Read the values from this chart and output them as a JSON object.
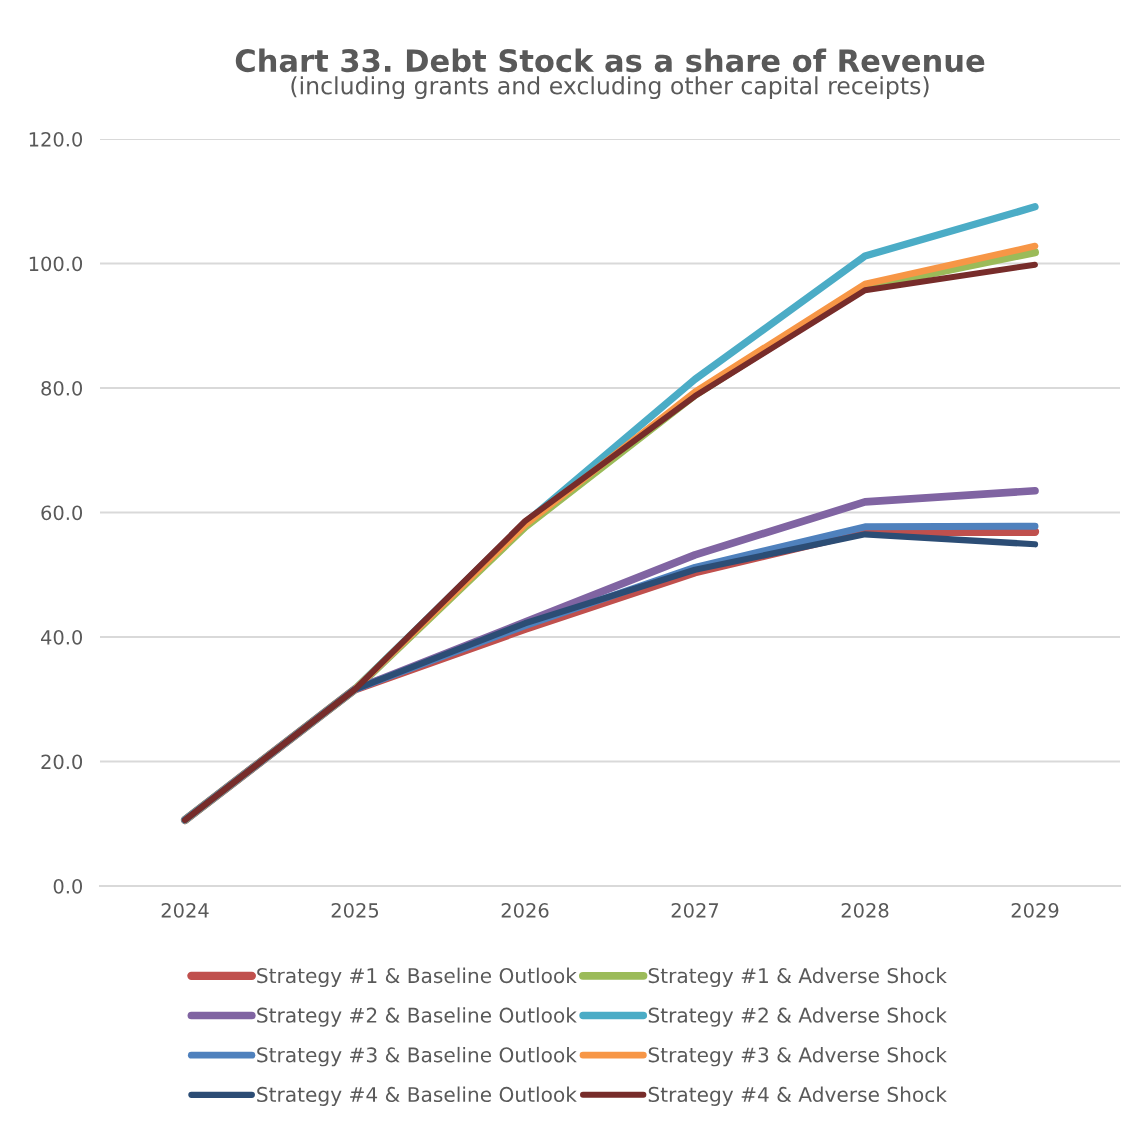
{
  "chart_data": {
    "type": "line",
    "title": "Chart 33. Debt Stock as a share of Revenue",
    "subtitle": "(including grants and excluding other capital receipts)",
    "categories": [
      "2024",
      "2025",
      "2026",
      "2027",
      "2028",
      "2029"
    ],
    "series": [
      {
        "name": "Strategy #1 & Baseline Outlook",
        "color": "#c0504d",
        "values": [
          10.6,
          31.6,
          41.3,
          50.4,
          56.9,
          56.9
        ]
      },
      {
        "name": "Strategy #1 & Adverse Shock",
        "color": "#9bbb59",
        "values": [
          10.6,
          31.6,
          57.7,
          78.9,
          96.2,
          101.8
        ]
      },
      {
        "name": "Strategy #2 & Baseline Outlook",
        "color": "#8064a2",
        "values": [
          10.6,
          31.6,
          42.4,
          53.2,
          61.7,
          63.5
        ]
      },
      {
        "name": "Strategy #2 & Adverse Shock",
        "color": "#4bacc6",
        "values": [
          10.6,
          31.6,
          58.3,
          81.4,
          101.2,
          109.1
        ]
      },
      {
        "name": "Strategy #3 & Baseline Outlook",
        "color": "#4f81bd",
        "values": [
          10.6,
          31.6,
          41.8,
          51.2,
          57.7,
          57.8
        ]
      },
      {
        "name": "Strategy #3 & Adverse Shock",
        "color": "#f79646",
        "values": [
          10.6,
          31.6,
          58.0,
          79.4,
          96.7,
          102.8
        ]
      },
      {
        "name": "Strategy #4 & Baseline Outlook",
        "color": "#2c4d75",
        "values": [
          10.6,
          31.6,
          42.2,
          50.8,
          56.5,
          54.9
        ]
      },
      {
        "name": "Strategy #4 & Adverse Shock",
        "color": "#772c2a",
        "values": [
          10.6,
          31.6,
          58.6,
          78.7,
          95.7,
          99.8
        ]
      }
    ],
    "ylim": [
      0,
      120
    ],
    "yticks": [
      {
        "value": 0,
        "label": "0.0"
      },
      {
        "value": 20,
        "label": "20.0"
      },
      {
        "value": 40,
        "label": "40.0"
      },
      {
        "value": 60,
        "label": "60.0"
      },
      {
        "value": 80,
        "label": "80.0"
      },
      {
        "value": 100,
        "label": "100.0"
      },
      {
        "value": 120,
        "label": "120.0"
      }
    ],
    "grid": "y",
    "legend": "bottom",
    "marker": "none",
    "line_style": "solid"
  }
}
